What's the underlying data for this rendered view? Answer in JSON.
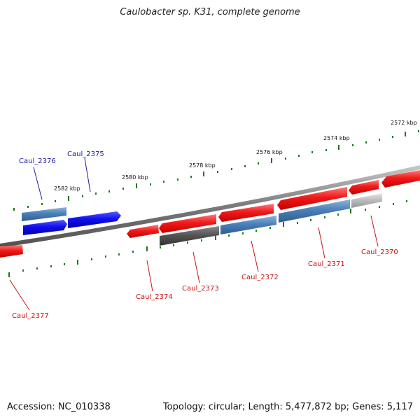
{
  "title": "Caulobacter sp. K31, complete genome",
  "footer": {
    "accession": "Accession: NC_010338",
    "summary": "Topology: circular; Length: 5,477,872 bp; Genes: 5,117"
  },
  "colors": {
    "forward_gene": "#e8202a",
    "reverse_gene_blue": "#1a1ae6",
    "steel_blue": "#4a7fb5",
    "dark_gray": "#555555",
    "light_gray": "#bbbbbb",
    "backbone": "#8a8a8a",
    "tick": "#1a7a1a",
    "label_blue": "#1a1aa8",
    "label_red": "#cc1111"
  },
  "kbp_ticks": [
    "2572 kbp",
    "2574 kbp",
    "2576 kbp",
    "2578 kbp",
    "2580 kbp",
    "2582 kbp"
  ],
  "gene_labels": [
    "Caul_2370",
    "Caul_2371",
    "Caul_2372",
    "Caul_2373",
    "Caul_2374",
    "Caul_2375",
    "Caul_2376",
    "Caul_2377"
  ]
}
